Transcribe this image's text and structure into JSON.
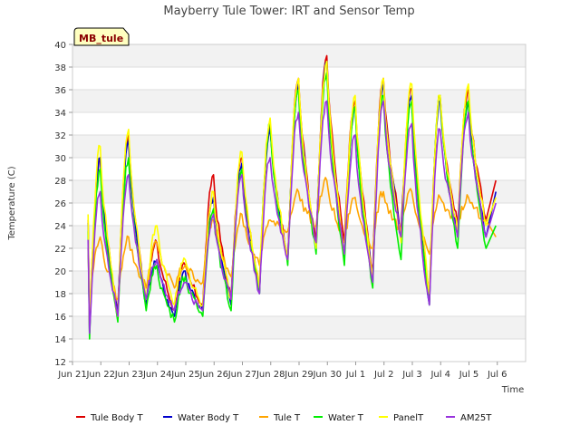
{
  "chart_data": {
    "type": "line",
    "title": "Mayberry Tule Tower: IRT and Sensor Temp",
    "xlabel": "Time",
    "ylabel": "Temperature (C)",
    "ylim": [
      12,
      40
    ],
    "xlim": [
      0,
      16
    ],
    "yticks": [
      12,
      14,
      16,
      18,
      20,
      22,
      24,
      26,
      28,
      30,
      32,
      34,
      36,
      38,
      40
    ],
    "xticks": [
      {
        "v": 0,
        "label": "Jun 21"
      },
      {
        "v": 1,
        "label": "Jun 22"
      },
      {
        "v": 2,
        "label": "Jun 23"
      },
      {
        "v": 3,
        "label": "Jun 24"
      },
      {
        "v": 4,
        "label": "Jun 25"
      },
      {
        "v": 5,
        "label": "Jun 26"
      },
      {
        "v": 6,
        "label": "Jun 27"
      },
      {
        "v": 7,
        "label": "Jun 28"
      },
      {
        "v": 8,
        "label": "Jun 29"
      },
      {
        "v": 9,
        "label": "Jun 30"
      },
      {
        "v": 10,
        "label": "Jul 1"
      },
      {
        "v": 11,
        "label": "Jul 2"
      },
      {
        "v": 12,
        "label": "Jul 3"
      },
      {
        "v": 13,
        "label": "Jul 4"
      },
      {
        "v": 14,
        "label": "Jul 5"
      },
      {
        "v": 15,
        "label": "Jul 6"
      }
    ],
    "grid": true,
    "legend_position": "bottom",
    "site_tag": "MB_tule",
    "days_x": [
      0.6,
      1.6,
      2.6,
      3.6,
      4.6,
      5.6,
      6.6,
      7.6,
      8.6,
      9.6,
      10.6,
      11.6,
      12.6,
      13.6,
      14.6
    ],
    "series": [
      {
        "name": "Tule Body T",
        "color": "#dd0000",
        "mins": [
          15.0,
          16.5,
          17.5,
          16.5,
          17.0,
          17.5,
          18.5,
          21.0,
          22.5,
          22.5,
          20.0,
          23.5,
          17.5,
          24.0,
          24.5
        ],
        "maxs": [
          30.0,
          32.0,
          22.5,
          20.5,
          28.5,
          30.0,
          33.0,
          37.0,
          39.0,
          35.0,
          37.0,
          36.0,
          35.5,
          36.0
        ],
        "end": 28.0
      },
      {
        "name": "Water Body T",
        "color": "#0000cc",
        "mins": [
          14.5,
          16.0,
          17.0,
          16.0,
          16.5,
          17.0,
          18.0,
          21.0,
          22.0,
          21.0,
          19.5,
          23.0,
          17.0,
          23.0,
          23.0
        ],
        "maxs": [
          30.0,
          31.5,
          21.0,
          20.0,
          26.5,
          29.5,
          32.5,
          36.5,
          38.5,
          34.5,
          36.5,
          35.5,
          35.0,
          35.0
        ],
        "end": 27.0
      },
      {
        "name": "Tule T",
        "color": "#ffa500",
        "mins": [
          17.0,
          17.5,
          18.5,
          18.5,
          19.0,
          19.5,
          20.5,
          23.5,
          24.0,
          22.5,
          22.0,
          23.5,
          21.5,
          24.0,
          24.5
        ],
        "maxs": [
          23.0,
          23.0,
          22.5,
          20.5,
          24.5,
          25.0,
          24.5,
          27.0,
          28.0,
          26.5,
          27.0,
          27.0,
          26.5,
          26.5
        ],
        "end": 23.0
      },
      {
        "name": "Water T",
        "color": "#00ee00",
        "mins": [
          14.0,
          15.5,
          16.5,
          15.5,
          16.0,
          16.5,
          18.0,
          20.5,
          21.5,
          20.5,
          18.5,
          21.0,
          17.0,
          22.0,
          22.0
        ],
        "maxs": [
          29.0,
          30.0,
          20.5,
          19.5,
          25.5,
          29.0,
          33.0,
          36.0,
          37.5,
          34.5,
          35.5,
          35.0,
          35.5,
          35.0
        ],
        "end": 24.0
      },
      {
        "name": "PanelT",
        "color": "#ffff00",
        "mins": [
          15.0,
          16.0,
          17.5,
          17.0,
          17.0,
          17.5,
          18.5,
          21.0,
          22.0,
          21.5,
          19.5,
          22.5,
          18.0,
          23.5,
          24.0
        ],
        "maxs": [
          31.0,
          32.5,
          24.0,
          21.0,
          27.0,
          30.5,
          33.5,
          37.0,
          38.5,
          35.5,
          37.0,
          36.5,
          35.5,
          36.5
        ],
        "end": 26.5
      },
      {
        "name": "AM25T",
        "color": "#9933dd",
        "mins": [
          14.5,
          16.0,
          17.5,
          16.5,
          16.5,
          17.5,
          18.0,
          21.0,
          22.5,
          21.5,
          19.0,
          23.0,
          17.0,
          23.0,
          23.0
        ],
        "maxs": [
          27.0,
          28.5,
          21.0,
          19.0,
          25.0,
          28.5,
          30.0,
          34.0,
          35.0,
          32.0,
          35.0,
          33.0,
          32.5,
          34.0
        ],
        "end": 26.0
      }
    ]
  }
}
